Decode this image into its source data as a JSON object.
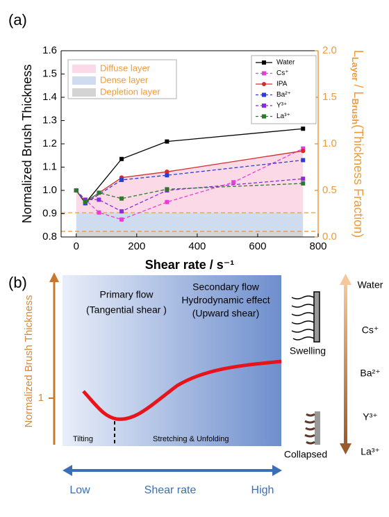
{
  "chart_data": {
    "type": "line",
    "panel_label": "(a)",
    "x_label": "Shear rate / s⁻¹",
    "y_label": "Normalized Brush Thickness",
    "y2_label_parts": [
      "L",
      "Layer",
      " / L",
      "Brush",
      "(Thickness Fraction)"
    ],
    "xlim": [
      -50,
      800
    ],
    "xticks": [
      0,
      200,
      400,
      600,
      800
    ],
    "ylim": [
      0.8,
      1.6
    ],
    "yticks": [
      0.8,
      0.9,
      {
        "value": 1,
        "label": "1.0"
      },
      1.1,
      1.2,
      1.3,
      1.4,
      1.5,
      1.6
    ],
    "y2lim": [
      0,
      2
    ],
    "y2ticks": [
      {
        "value": 0,
        "label": "0.0"
      },
      0.5,
      {
        "value": 1,
        "label": "1.0"
      },
      1.5,
      {
        "value": 2,
        "label": "2.0"
      }
    ],
    "y2_color": "#ef9a3c",
    "areas": [
      {
        "name": "Diffuse layer",
        "color": "#fcd9e6",
        "axis": "y2",
        "x": [
          0,
          30,
          150,
          300,
          750
        ],
        "lower": [
          0.26,
          0.26,
          0.26,
          0.26,
          0.26
        ],
        "upper": [
          0.5,
          0.375,
          0.64,
          0.7,
          0.93
        ]
      },
      {
        "name": "Dense layer",
        "color": "#cfdcf0",
        "axis": "y2",
        "x": [
          0,
          750
        ],
        "lower": [
          0.06,
          0.06
        ],
        "upper": [
          0.26,
          0.26
        ]
      },
      {
        "name": "Depletion layer",
        "color": "#d4d4d4",
        "axis": "y2",
        "x": [
          0,
          750
        ],
        "lower": [
          0,
          0
        ],
        "upper": [
          0.06,
          0.06
        ]
      }
    ],
    "series": [
      {
        "name": "Water",
        "color": "#000000",
        "line_style": "solid",
        "marker": "square",
        "x": [
          0,
          30,
          150,
          300,
          750
        ],
        "values": [
          1.0,
          0.945,
          1.135,
          1.21,
          1.265
        ]
      },
      {
        "name": "Cs⁺",
        "color": "#ee3bd8",
        "line_style": "dashed",
        "marker": "square",
        "x": [
          0,
          30,
          75,
          150,
          300,
          520,
          750
        ],
        "values": [
          1.0,
          0.96,
          0.905,
          0.875,
          0.95,
          1.035,
          1.18
        ]
      },
      {
        "name": "IPA",
        "color": "#d42a2a",
        "line_style": "solid",
        "marker": "circle",
        "x": [
          0,
          30,
          150,
          300,
          750
        ],
        "values": [
          1.0,
          0.95,
          1.055,
          1.08,
          1.17
        ]
      },
      {
        "name": "Ba²⁺",
        "color": "#2a3fd0",
        "line_style": "dashed",
        "marker": "square",
        "x": [
          0,
          30,
          150,
          300,
          750
        ],
        "values": [
          1.0,
          0.945,
          1.045,
          1.065,
          1.13
        ]
      },
      {
        "name": "Y³⁺",
        "color": "#8a2be2",
        "line_style": "dashed",
        "marker": "square",
        "x": [
          0,
          30,
          75,
          150,
          300,
          750
        ],
        "values": [
          1.0,
          0.96,
          0.96,
          0.91,
          1.0,
          1.05
        ]
      },
      {
        "name": "La³⁺",
        "color": "#2a7a2a",
        "line_style": "dashed",
        "marker": "square",
        "x": [
          0,
          30,
          75,
          150,
          300,
          750
        ],
        "values": [
          1.0,
          0.95,
          0.99,
          0.965,
          1.005,
          1.03
        ]
      }
    ]
  },
  "panel_b": {
    "label": "(b)",
    "y_axis_label": "Normalized Brush Thickness",
    "y_tick": "1",
    "primary": [
      "Primary flow",
      "(Tangential shear )"
    ],
    "secondary": [
      "Secondary flow",
      "Hydrodynamic effect",
      "(Upward shear)"
    ],
    "regions": [
      "Tilting",
      "Stretching & Unfolding"
    ],
    "x_axis": [
      "Low",
      "Shear rate",
      "High"
    ],
    "states": [
      "Swelling",
      "Collapsed"
    ],
    "ions": [
      "Water",
      "Cs⁺",
      "Ba²⁺",
      "Y³⁺",
      "La³⁺"
    ]
  }
}
